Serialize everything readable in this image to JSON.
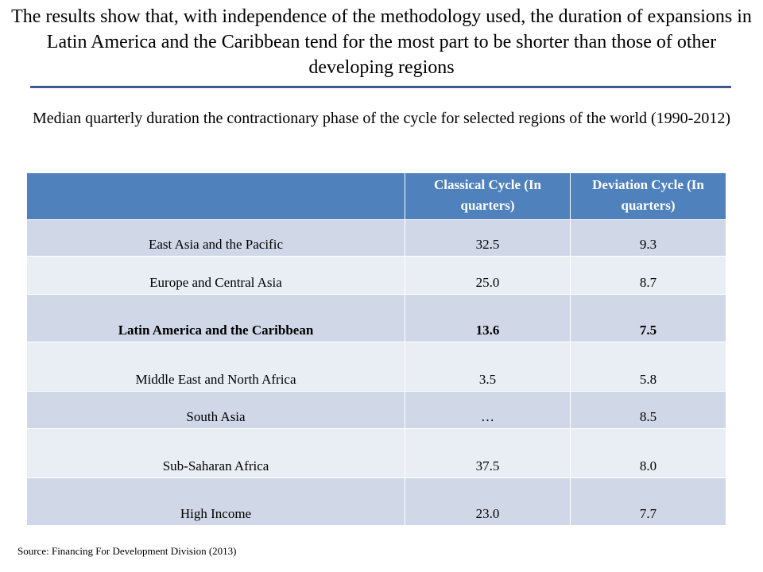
{
  "title": "The results show that, with independence of the methodology used, the duration of expansions in Latin America and the Caribbean tend for the most part to be shorter than those of other developing regions",
  "subtitle": "Median quarterly duration the contractionary phase of the cycle for selected regions of the world (1990-2012)",
  "table": {
    "headers": {
      "region": "",
      "classical": "Classical Cycle (In quarters)",
      "deviation": "Deviation Cycle (In quarters)"
    },
    "rows": [
      {
        "region": "East Asia and the Pacific",
        "classical": "32.5",
        "deviation": "9.3",
        "bold": false
      },
      {
        "region": "Europe and Central Asia",
        "classical": "25.0",
        "deviation": "8.7",
        "bold": false
      },
      {
        "region": "Latin America and the Caribbean",
        "classical": "13.6",
        "deviation": "7.5",
        "bold": true
      },
      {
        "region": "Middle East and North Africa",
        "classical": "3.5",
        "deviation": "5.8",
        "bold": false
      },
      {
        "region": "South Asia",
        "classical": "…",
        "deviation": "8.5",
        "bold": false
      },
      {
        "region": "Sub-Saharan Africa",
        "classical": "37.5",
        "deviation": "8.0",
        "bold": false
      },
      {
        "region": "High Income",
        "classical": "23.0",
        "deviation": "7.7",
        "bold": false
      }
    ]
  },
  "source": "Source: Financing For Development Division (2013)",
  "colors": {
    "header_bg": "#4f81bd",
    "row_dark": "#d0d8e8",
    "row_light": "#e9edf4",
    "rule": "#3e5a8e"
  }
}
